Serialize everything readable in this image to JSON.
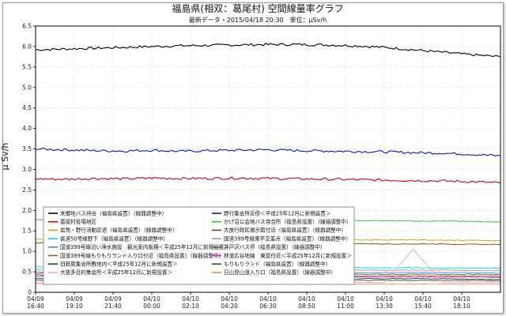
{
  "chart_data": {
    "type": "line",
    "title": "福島県(相双：葛尾村) 空間線量率グラフ",
    "subtitle": "最新データ・2015/04/18 20:30　単位：μSv/h",
    "ylabel": "μ Sv/h",
    "xlabel": "",
    "ylim": [
      0,
      6.5
    ],
    "yticks": [
      "0",
      "0.5",
      "1.0",
      "1.5",
      "2.0",
      "2.5",
      "3.0",
      "3.5",
      "4.0",
      "4.5",
      "5.0",
      "5.5",
      "6.0",
      "6.5"
    ],
    "xticks": [
      {
        "date": "04/09",
        "time": "16:40"
      },
      {
        "date": "04/09",
        "time": "19:10"
      },
      {
        "date": "04/09",
        "time": "21:40"
      },
      {
        "date": "04/10",
        "time": "00:00"
      },
      {
        "date": "04/10",
        "time": "02:10"
      },
      {
        "date": "04/10",
        "time": "04:20"
      },
      {
        "date": "04/10",
        "time": "06:30"
      },
      {
        "date": "04/10",
        "time": "08:50"
      },
      {
        "date": "04/10",
        "time": "11:00"
      },
      {
        "date": "04/10",
        "time": "13:30"
      },
      {
        "date": "04/10",
        "time": "15:40"
      },
      {
        "date": "04/10",
        "time": "18:10"
      }
    ],
    "grid": true,
    "legend_position": "lower-center",
    "series": [
      {
        "name": "末郷地バス待合（福島県設置）（線器調整中）",
        "color": "#000000",
        "values": [
          5.92,
          5.94,
          5.96,
          5.98,
          6.0,
          6.02,
          6.03,
          6.04,
          6.05,
          6.05,
          6.04,
          6.02,
          5.98,
          5.92,
          5.86,
          5.8,
          5.75
        ]
      },
      {
        "name": "野行集会所近傍＜平成25年12月に新規設置＞",
        "color": "#0a14c8",
        "values": [
          3.5,
          3.48,
          3.46,
          3.45,
          3.47,
          3.44,
          3.46,
          3.47,
          3.48,
          3.46,
          3.45,
          3.44,
          3.43,
          3.41,
          3.4,
          3.37,
          3.33
        ]
      },
      {
        "name": "葛尾村役場地区",
        "color": "#d40000",
        "values": [
          2.77,
          2.76,
          2.78,
          2.77,
          2.79,
          2.78,
          2.78,
          2.79,
          2.78,
          2.77,
          2.76,
          2.75,
          2.74,
          2.73,
          2.72,
          2.7,
          2.67
        ]
      },
      {
        "name": "かげ沼公会地バス待合所（福島県設置）（線器調整中）",
        "color": "#22cc22",
        "values": [
          1.77,
          1.77,
          1.76,
          1.77,
          1.76,
          1.76,
          1.77,
          1.76,
          1.76,
          1.75,
          1.76,
          1.75,
          1.75,
          1.74,
          1.74,
          1.73,
          1.72
        ]
      },
      {
        "name": "岩角・野行活動区道（福島県設置）（線器調整中）",
        "color": "#e09900",
        "values": [
          1.29,
          1.3,
          1.29,
          1.3,
          1.3,
          1.29,
          1.3,
          1.29,
          1.29,
          1.29,
          1.29,
          1.28,
          1.28,
          1.28,
          1.27,
          1.27,
          1.26
        ]
      },
      {
        "name": "大放行政区展示館付近（福島県設置）（線器調整中）",
        "color": "#8c3c00",
        "values": [
          1.21,
          1.21,
          1.2,
          1.21,
          1.2,
          1.2,
          1.2,
          1.2,
          1.19,
          1.19,
          1.19,
          1.19,
          1.18,
          1.18,
          1.18,
          1.17,
          1.17
        ]
      },
      {
        "name": "県道50号線野下（福島県設置）（線器調整中）",
        "color": "#00e0e0",
        "values": [
          0.62,
          0.62,
          0.62,
          0.61,
          0.62,
          0.61,
          0.61,
          0.61,
          0.61,
          0.6,
          0.6,
          0.6,
          0.6,
          0.6,
          0.59,
          0.59,
          0.59
        ]
      },
      {
        "name": "国道399号線東平交差点（福島県設置）（線器調整中）",
        "color": "#999999",
        "values": [
          0.56,
          0.56,
          0.56,
          0.56,
          0.55,
          0.55,
          0.55,
          0.55,
          0.55,
          0.55,
          0.54,
          0.54,
          0.54,
          0.54,
          0.54,
          0.53,
          0.53
        ]
      },
      {
        "name": "国道399号線沿い浄水施設　観光案内板横＜平成25年12月に新規設置＞",
        "color": "#5a7cff",
        "values": [
          0.5,
          0.5,
          0.5,
          0.5,
          0.5,
          0.49,
          0.49,
          0.49,
          0.49,
          0.49,
          0.49,
          0.48,
          0.48,
          0.48,
          0.48,
          0.48,
          0.47
        ]
      },
      {
        "name": "井戸沢バス停（福島県設置）（線器調整中）",
        "color": "#556b2f",
        "values": [
          0.46,
          0.46,
          0.46,
          0.46,
          0.45,
          0.45,
          0.45,
          0.45,
          0.45,
          0.45,
          0.45,
          0.44,
          0.44,
          0.44,
          0.44,
          0.44,
          0.43
        ]
      },
      {
        "name": "国道399号線もりもりランド入り口付近（福島県設置）（線器調整中）",
        "color": "#a0522d",
        "values": [
          0.42,
          0.42,
          0.42,
          0.42,
          0.41,
          0.41,
          0.41,
          0.41,
          0.41,
          0.41,
          0.4,
          0.4,
          0.4,
          0.4,
          0.4,
          0.4,
          0.39
        ]
      },
      {
        "name": "林道広谷地線　東屋付近＜平成25年12月に新規設置＞",
        "color": "#e020e0",
        "values": [
          0.39,
          0.39,
          0.38,
          0.38,
          0.38,
          0.38,
          0.38,
          0.38,
          0.38,
          0.37,
          0.37,
          0.37,
          0.37,
          0.37,
          0.37,
          0.37,
          0.36
        ]
      },
      {
        "name": "旧若鹿集会所敷地内＜平成25年12月に新規設置＞",
        "color": "#006400",
        "values": [
          0.34,
          0.34,
          0.34,
          0.34,
          0.34,
          0.34,
          0.34,
          0.33,
          0.33,
          0.33,
          0.33,
          0.33,
          0.33,
          0.33,
          0.33,
          0.32,
          0.32
        ]
      },
      {
        "name": "もりもりランド（福島県設置）（線器調整中）",
        "color": "#444444",
        "values": [
          0.3,
          0.3,
          0.3,
          0.3,
          0.3,
          0.3,
          0.3,
          0.3,
          0.29,
          0.29,
          0.29,
          0.29,
          0.29,
          0.29,
          0.29,
          0.29,
          0.28
        ]
      },
      {
        "name": "大放多目的集会所＜平成25年12月に新規設置＞",
        "color": "#ff9ad2",
        "values": [
          0.25,
          0.25,
          0.25,
          0.25,
          0.25,
          0.25,
          0.25,
          0.25,
          0.25,
          0.24,
          0.24,
          0.24,
          0.24,
          1.05,
          0.24,
          0.24,
          0.24
        ]
      },
      {
        "name": "日山登山道入り口（福島県設置）（線器調整中）",
        "color": "#ff8c4a",
        "values": [
          0.21,
          0.21,
          0.21,
          0.21,
          0.21,
          0.21,
          0.21,
          0.21,
          0.2,
          0.2,
          0.2,
          0.2,
          0.2,
          0.2,
          0.2,
          0.2,
          0.2
        ]
      }
    ]
  }
}
